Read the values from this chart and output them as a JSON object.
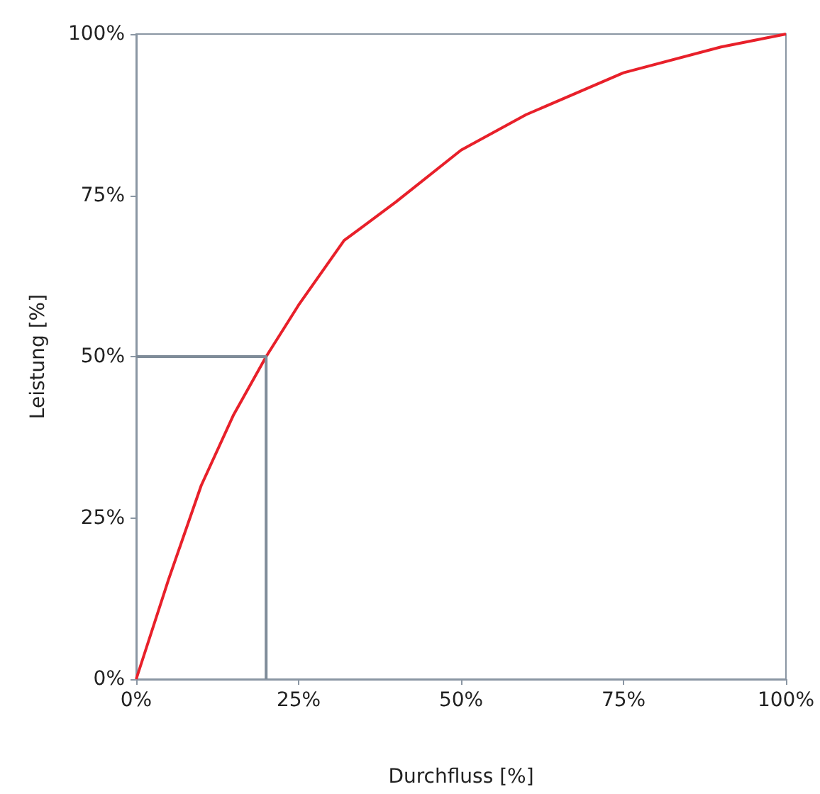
{
  "chart_data": {
    "type": "line",
    "xlabel": "Durchfluss [%]",
    "ylabel": "Leistung [%]",
    "xlim": [
      0,
      100
    ],
    "ylim": [
      0,
      100
    ],
    "xticks": [
      {
        "value": 0,
        "label": "0%"
      },
      {
        "value": 25,
        "label": "25%"
      },
      {
        "value": 50,
        "label": "50%"
      },
      {
        "value": 75,
        "label": "75%"
      },
      {
        "value": 100,
        "label": "100%"
      }
    ],
    "yticks": [
      {
        "value": 0,
        "label": "0%"
      },
      {
        "value": 25,
        "label": "25%"
      },
      {
        "value": 50,
        "label": "50%"
      },
      {
        "value": 75,
        "label": "75%"
      },
      {
        "value": 100,
        "label": "100%"
      }
    ],
    "grid": false,
    "marker": "none",
    "line_style": "solid",
    "series": [
      {
        "color": "#e8202a",
        "x": [
          0,
          5,
          10,
          15,
          20,
          25,
          32,
          40,
          50,
          60,
          75,
          90,
          100
        ],
        "values": [
          0,
          15.5,
          30,
          41,
          50,
          58,
          68,
          74,
          82,
          87.5,
          94,
          98,
          100
        ]
      },
      {
        "color": "#7f8c99",
        "x": [
          0,
          20,
          20
        ],
        "values": [
          50,
          50,
          0
        ]
      }
    ]
  }
}
